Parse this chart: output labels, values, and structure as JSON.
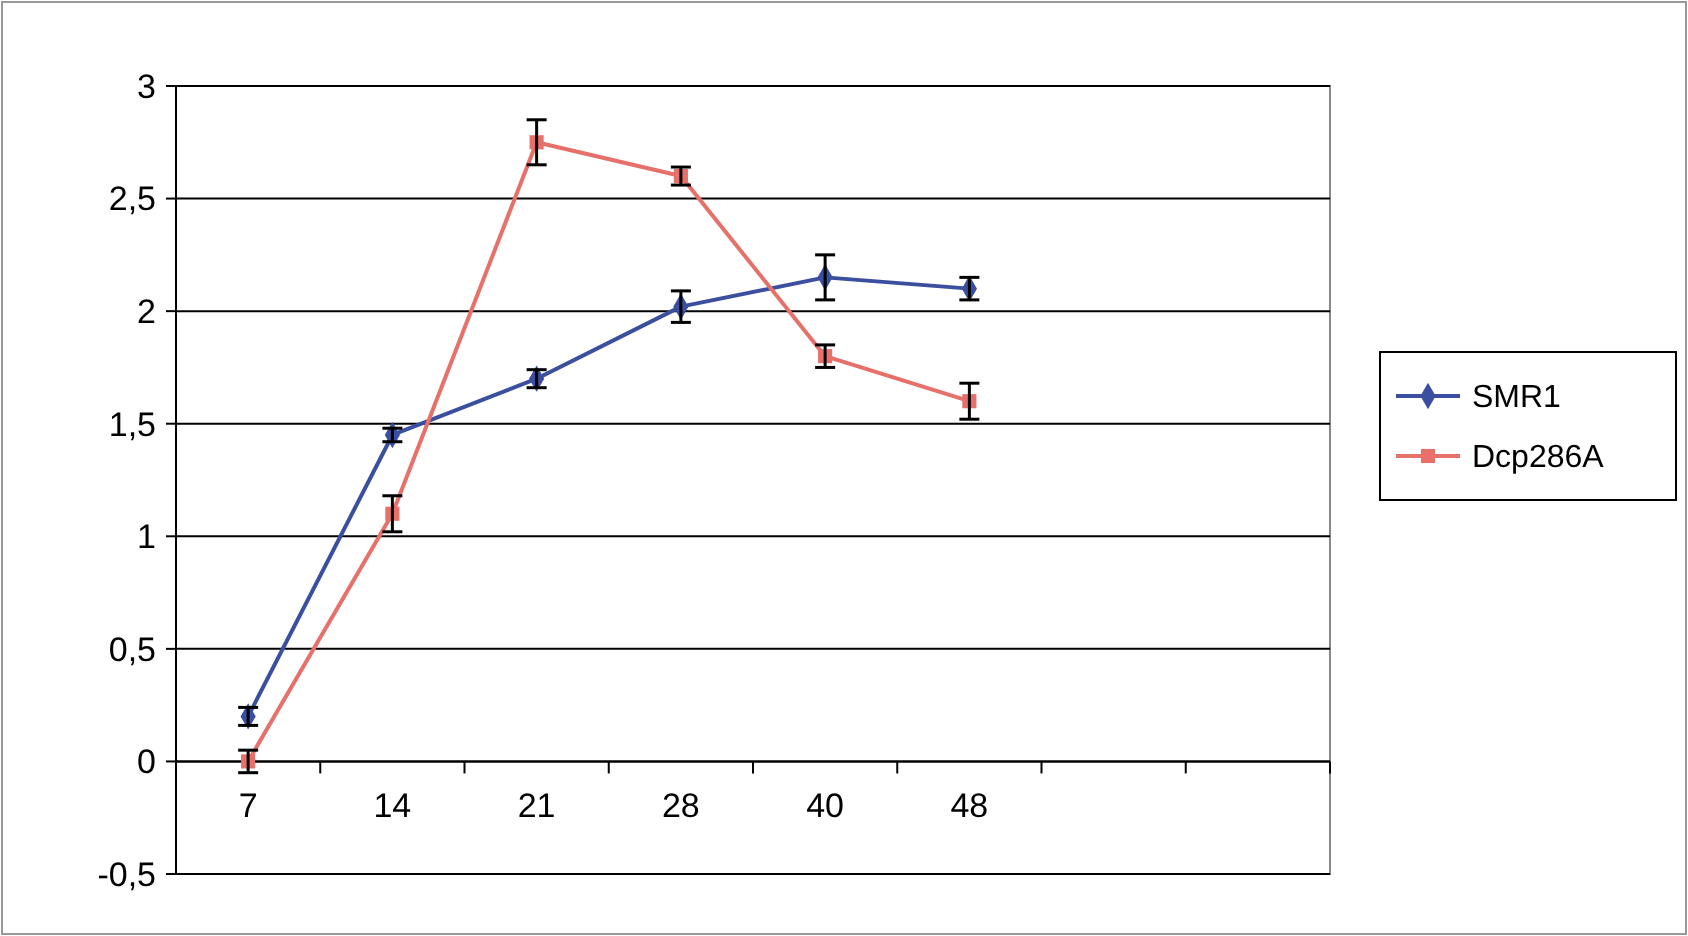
{
  "chart_data": {
    "type": "line",
    "categories": [
      "7",
      "14",
      "21",
      "28",
      "40",
      "48",
      null,
      null
    ],
    "series": [
      {
        "name": "SMR1",
        "color": "#3a4f9f",
        "marker": "diamond",
        "values": [
          0.2,
          1.45,
          1.7,
          2.02,
          2.15,
          2.1,
          null,
          null
        ],
        "errors": [
          0.04,
          0.03,
          0.04,
          0.07,
          0.1,
          0.05,
          null,
          null
        ]
      },
      {
        "name": "Dcp286A",
        "color": "#e8706a",
        "marker": "square",
        "values": [
          0,
          1.1,
          2.75,
          2.6,
          1.8,
          1.6,
          null,
          null
        ],
        "errors": [
          0.05,
          0.08,
          0.1,
          0.04,
          0.05,
          0.08,
          null,
          null
        ]
      }
    ],
    "ylim": [
      -0.5,
      3
    ],
    "yticks": [
      {
        "value": -0.5,
        "label": "-0,5"
      },
      0,
      {
        "value": 0.5,
        "label": "0,5"
      },
      1,
      {
        "value": 1.5,
        "label": "1,5"
      },
      2,
      {
        "value": 2.5,
        "label": "2,5"
      },
      3
    ],
    "grid": "y",
    "legend": "right",
    "line_style": "solid"
  }
}
